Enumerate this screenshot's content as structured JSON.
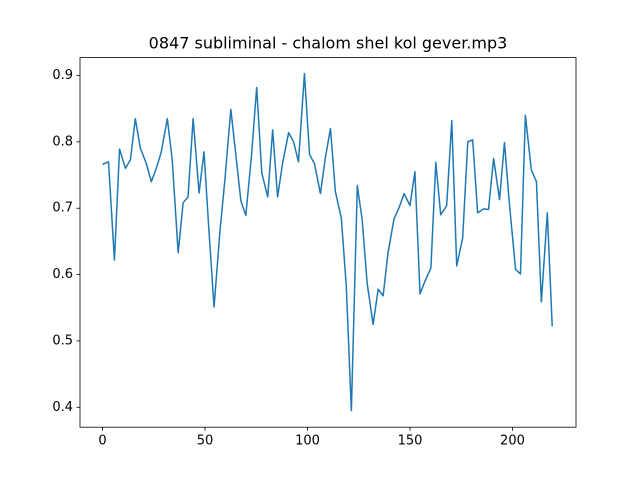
{
  "chart_data": {
    "type": "line",
    "title": "0847 subliminal - chalom shel kol gever.mp3",
    "x": [
      0,
      2.9,
      5.8,
      8.3,
      11.2,
      13.6,
      16.0,
      18.4,
      21.4,
      23.8,
      26.2,
      28.6,
      31.6,
      34.0,
      36.9,
      39.3,
      41.7,
      44.2,
      47.1,
      49.5,
      51.9,
      54.4,
      57.3,
      59.7,
      62.6,
      65.0,
      67.5,
      69.9,
      72.8,
      75.2,
      77.7,
      80.6,
      83.0,
      85.4,
      87.9,
      90.8,
      93.2,
      95.6,
      98.5,
      101.0,
      103.4,
      106.3,
      108.7,
      111.2,
      113.6,
      116.5,
      118.9,
      121.4,
      124.3,
      126.7,
      129.1,
      132.0,
      134.5,
      136.9,
      139.3,
      142.2,
      144.7,
      147.1,
      150.0,
      152.4,
      154.9,
      157.3,
      160.2,
      162.6,
      165.0,
      167.9,
      170.4,
      172.8,
      175.7,
      178.2,
      180.6,
      183.0,
      185.9,
      188.3,
      190.8,
      193.7,
      196.1,
      198.5,
      201.5,
      203.9,
      206.3,
      209.2,
      211.7,
      214.1,
      217.0,
      219.4
    ],
    "series": [
      {
        "color": "#1f77b4",
        "values": [
          0.766,
          0.77,
          0.622,
          0.789,
          0.76,
          0.773,
          0.835,
          0.791,
          0.767,
          0.74,
          0.76,
          0.784,
          0.835,
          0.773,
          0.633,
          0.708,
          0.717,
          0.835,
          0.723,
          0.785,
          0.667,
          0.551,
          0.666,
          0.743,
          0.849,
          0.781,
          0.711,
          0.689,
          0.784,
          0.882,
          0.753,
          0.717,
          0.818,
          0.717,
          0.769,
          0.814,
          0.8,
          0.77,
          0.903,
          0.781,
          0.767,
          0.722,
          0.776,
          0.82,
          0.725,
          0.685,
          0.584,
          0.395,
          0.734,
          0.682,
          0.587,
          0.525,
          0.578,
          0.568,
          0.633,
          0.684,
          0.701,
          0.722,
          0.704,
          0.755,
          0.571,
          0.59,
          0.61,
          0.769,
          0.69,
          0.704,
          0.832,
          0.613,
          0.655,
          0.8,
          0.803,
          0.693,
          0.699,
          0.698,
          0.775,
          0.713,
          0.799,
          0.707,
          0.608,
          0.601,
          0.84,
          0.758,
          0.74,
          0.559,
          0.693,
          0.522
        ]
      }
    ],
    "xlim": [
      -11,
      231
    ],
    "ylim": [
      0.37,
      0.927
    ],
    "xticks": [
      0,
      50,
      100,
      150,
      200
    ],
    "yticks": [
      0.4,
      0.5,
      0.6,
      0.7,
      0.8,
      0.9
    ]
  }
}
